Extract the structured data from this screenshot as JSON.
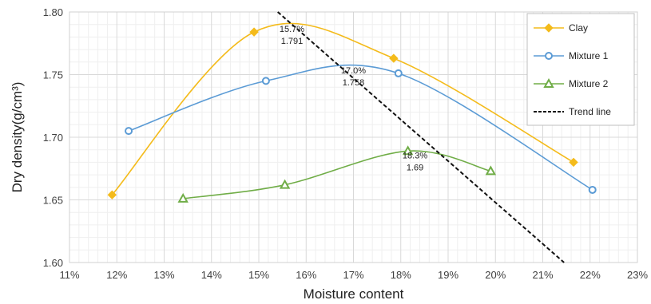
{
  "chart_data": {
    "type": "line",
    "xlabel": "Moisture content",
    "ylabel": "Dry density(g/cm³)",
    "xlim": [
      11,
      23
    ],
    "ylim": [
      1.6,
      1.8
    ],
    "x_ticks": [
      "11%",
      "12%",
      "13%",
      "14%",
      "15%",
      "16%",
      "17%",
      "18%",
      "19%",
      "20%",
      "21%",
      "22%",
      "23%"
    ],
    "y_ticks": [
      "1.60",
      "1.65",
      "1.70",
      "1.75",
      "1.80"
    ],
    "grid": true,
    "legend_position": "top-right",
    "series": [
      {
        "name": "Clay",
        "color": "#f4bb1b",
        "marker": "diamond",
        "smooth": true,
        "points": [
          [
            11.9,
            1.654
          ],
          [
            14.9,
            1.784
          ],
          [
            17.85,
            1.763
          ],
          [
            21.65,
            1.68
          ]
        ]
      },
      {
        "name": "Mixture 1",
        "color": "#5b9bd5",
        "marker": "circle",
        "smooth": true,
        "points": [
          [
            12.25,
            1.705
          ],
          [
            15.15,
            1.745
          ],
          [
            17.95,
            1.751
          ],
          [
            22.05,
            1.658
          ]
        ]
      },
      {
        "name": "Mixture 2",
        "color": "#70ad47",
        "marker": "triangle",
        "smooth": true,
        "points": [
          [
            13.4,
            1.651
          ],
          [
            15.55,
            1.662
          ],
          [
            18.15,
            1.689
          ],
          [
            19.9,
            1.673
          ]
        ]
      },
      {
        "name": "Trend line",
        "color": "#111111",
        "marker": "none",
        "dashed": true,
        "points": [
          [
            15.4,
            1.8
          ],
          [
            21.45,
            1.6
          ]
        ]
      }
    ],
    "annotations": [
      {
        "lines": [
          "15.7%",
          "1.791"
        ],
        "x": 15.7,
        "y": 1.791
      },
      {
        "lines": [
          "17.0%",
          "1.758"
        ],
        "x": 17.0,
        "y": 1.758
      },
      {
        "lines": [
          "18.3%",
          "1.69"
        ],
        "x": 18.3,
        "y": 1.69
      }
    ]
  }
}
